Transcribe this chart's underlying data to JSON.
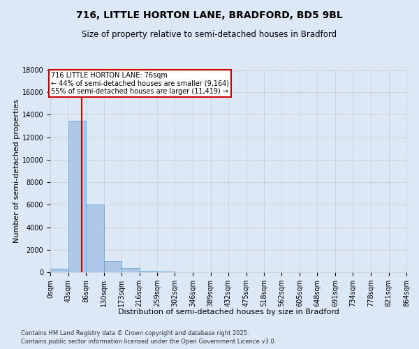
{
  "title": "716, LITTLE HORTON LANE, BRADFORD, BD5 9BL",
  "subtitle": "Size of property relative to semi-detached houses in Bradford",
  "xlabel": "Distribution of semi-detached houses by size in Bradford",
  "ylabel": "Number of semi-detached properties",
  "property_size": 76,
  "annotation_line1": "716 LITTLE HORTON LANE: 76sqm",
  "annotation_line2": "← 44% of semi-detached houses are smaller (9,164)",
  "annotation_line3": "55% of semi-detached houses are larger (11,419) →",
  "footnote1": "Contains HM Land Registry data © Crown copyright and database right 2025.",
  "footnote2": "Contains public sector information licensed under the Open Government Licence v3.0.",
  "bin_edges": [
    0,
    43,
    86,
    129,
    172,
    215,
    258,
    301,
    344,
    387,
    430,
    473,
    516,
    559,
    602,
    645,
    688,
    731,
    774,
    817,
    860
  ],
  "bin_labels": [
    "0sqm",
    "43sqm",
    "86sqm",
    "130sqm",
    "173sqm",
    "216sqm",
    "259sqm",
    "302sqm",
    "346sqm",
    "389sqm",
    "432sqm",
    "475sqm",
    "518sqm",
    "562sqm",
    "605sqm",
    "648sqm",
    "691sqm",
    "734sqm",
    "778sqm",
    "821sqm",
    "864sqm"
  ],
  "bar_heights": [
    300,
    13500,
    6000,
    1000,
    380,
    130,
    80,
    30,
    0,
    0,
    0,
    0,
    0,
    0,
    0,
    0,
    0,
    0,
    0,
    0
  ],
  "bar_color": "#aec6e8",
  "bar_edgecolor": "#5a9fd4",
  "vline_color": "#cc0000",
  "vline_x": 76,
  "annotation_box_color": "#cc0000",
  "ylim": [
    0,
    18000
  ],
  "yticks": [
    0,
    2000,
    4000,
    6000,
    8000,
    10000,
    12000,
    14000,
    16000,
    18000
  ],
  "grid_color": "#cccccc",
  "background_color": "#dce8f5",
  "title_fontsize": 10,
  "subtitle_fontsize": 8.5,
  "axis_fontsize": 8,
  "tick_fontsize": 7,
  "annotation_fontsize": 7,
  "footnote_fontsize": 6
}
